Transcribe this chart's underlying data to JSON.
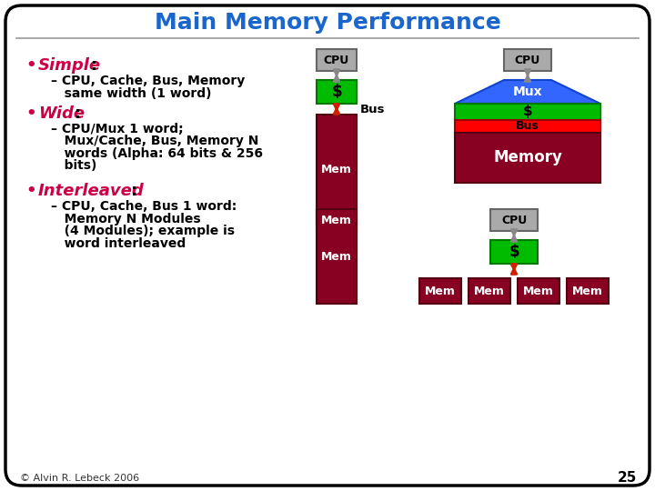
{
  "title": "Main Memory Performance",
  "title_color": "#1a66cc",
  "bg_color": "#ffffff",
  "border_color": "#000000",
  "bullet_color": "#cc0044",
  "text_color": "#000000",
  "colors": {
    "cpu_gray": "#aaaaaa",
    "cpu_border": "#666666",
    "cache_green": "#00bb00",
    "cache_border": "#007700",
    "bus_red": "#ff0000",
    "bus_border": "#990000",
    "mem_darkred": "#880022",
    "mem_border": "#550011",
    "arrow_gray": "#888888",
    "arrow_red": "#cc2200",
    "mux_blue": "#3366ff",
    "mux_border": "#1144cc"
  },
  "footer_text": "© Alvin R. Lebeck 2006",
  "page_num": "25"
}
